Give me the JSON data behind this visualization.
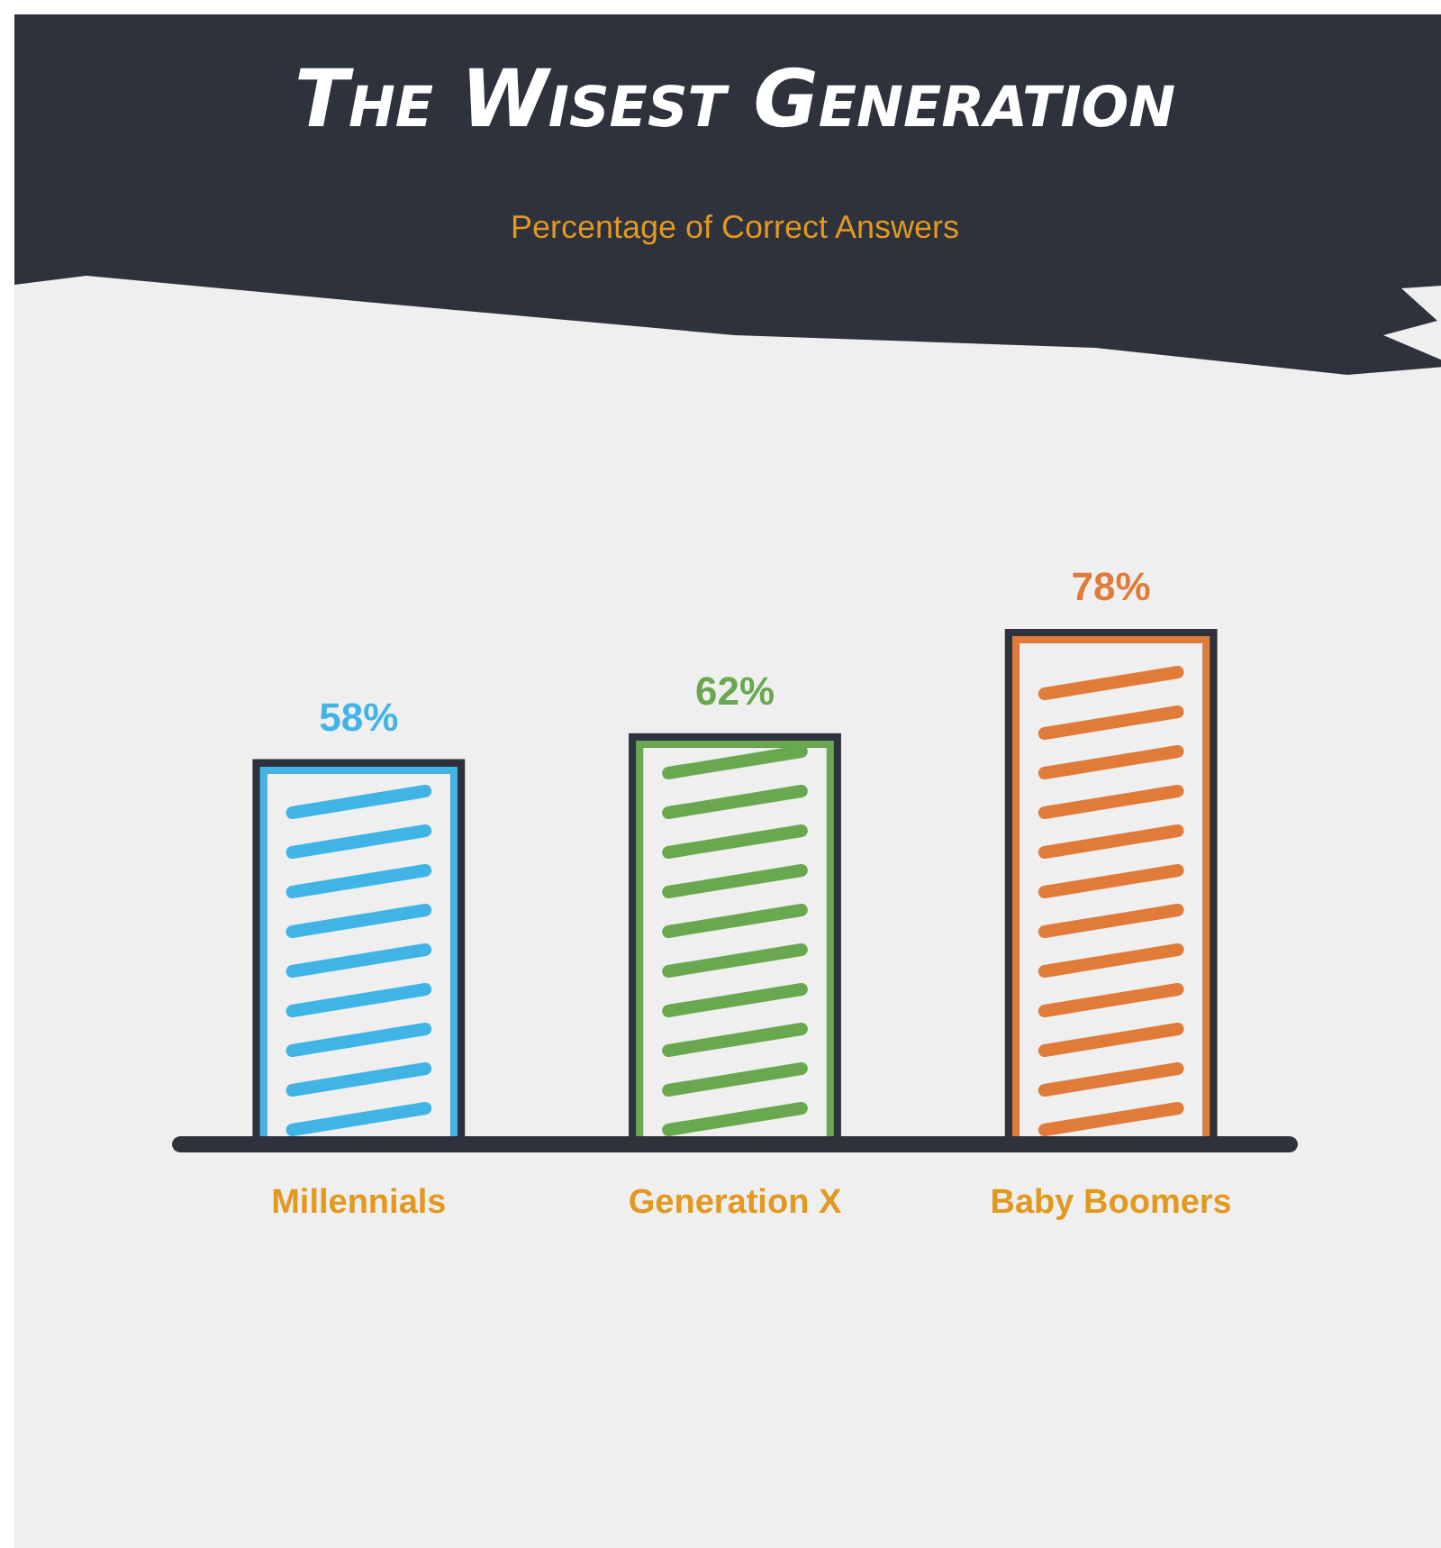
{
  "chart_data": {
    "type": "bar",
    "title": "The Wisest Generation",
    "subtitle": "Percentage of Correct Answers",
    "categories": [
      "Millennials",
      "Generation X",
      "Baby Boomers"
    ],
    "values": [
      58,
      62,
      78
    ],
    "colors": [
      "#41b4e6",
      "#6aa84f",
      "#e07b3a"
    ],
    "value_labels": [
      "58%",
      "62%",
      "78%"
    ]
  }
}
